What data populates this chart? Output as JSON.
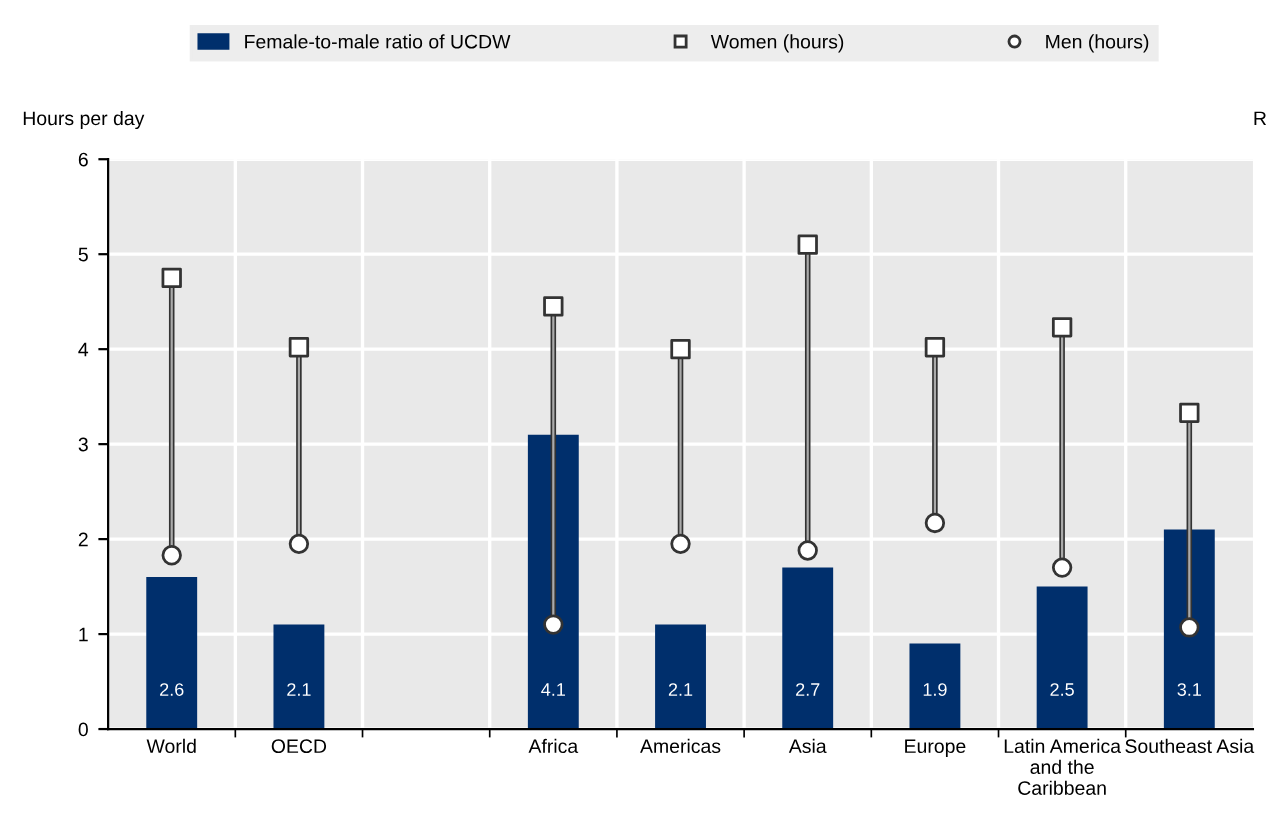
{
  "chart_data": {
    "type": "bar",
    "ylabel": "Hours per day",
    "y2label": "R",
    "categories": [
      "World",
      "OECD",
      null,
      "Africa",
      "Americas",
      "Asia",
      "Europe",
      "Latin America\nand the\nCaribbean",
      "Southeast Asia"
    ],
    "ylim": [
      0,
      6
    ],
    "yticks": [
      0,
      1,
      2,
      3,
      4,
      5,
      6
    ],
    "y2lim": [
      1,
      7
    ],
    "series": [
      {
        "name": "Female-to-male ratio of UCDW",
        "axis": "y2",
        "color": "#002f6c",
        "values": [
          2.6,
          2.1,
          null,
          4.1,
          2.1,
          2.7,
          1.9,
          2.5,
          3.1
        ],
        "value_labels": [
          "2.6",
          "2.1",
          null,
          "4.1",
          "2.1",
          "2.7",
          "1.9",
          "2.5",
          "3.1"
        ]
      },
      {
        "name": "Women (hours)",
        "type": "scatter",
        "marker": "square",
        "color": "#ffffff",
        "values": [
          4.75,
          4.02,
          null,
          4.45,
          4.0,
          5.1,
          4.02,
          4.23,
          3.33
        ]
      },
      {
        "name": "Men (hours)",
        "type": "scatter",
        "marker": "circle",
        "color": "#ffffff",
        "values": [
          1.83,
          1.95,
          null,
          1.1,
          1.95,
          1.88,
          2.17,
          1.7,
          1.07
        ]
      }
    ],
    "grid": true,
    "legend": "top"
  }
}
